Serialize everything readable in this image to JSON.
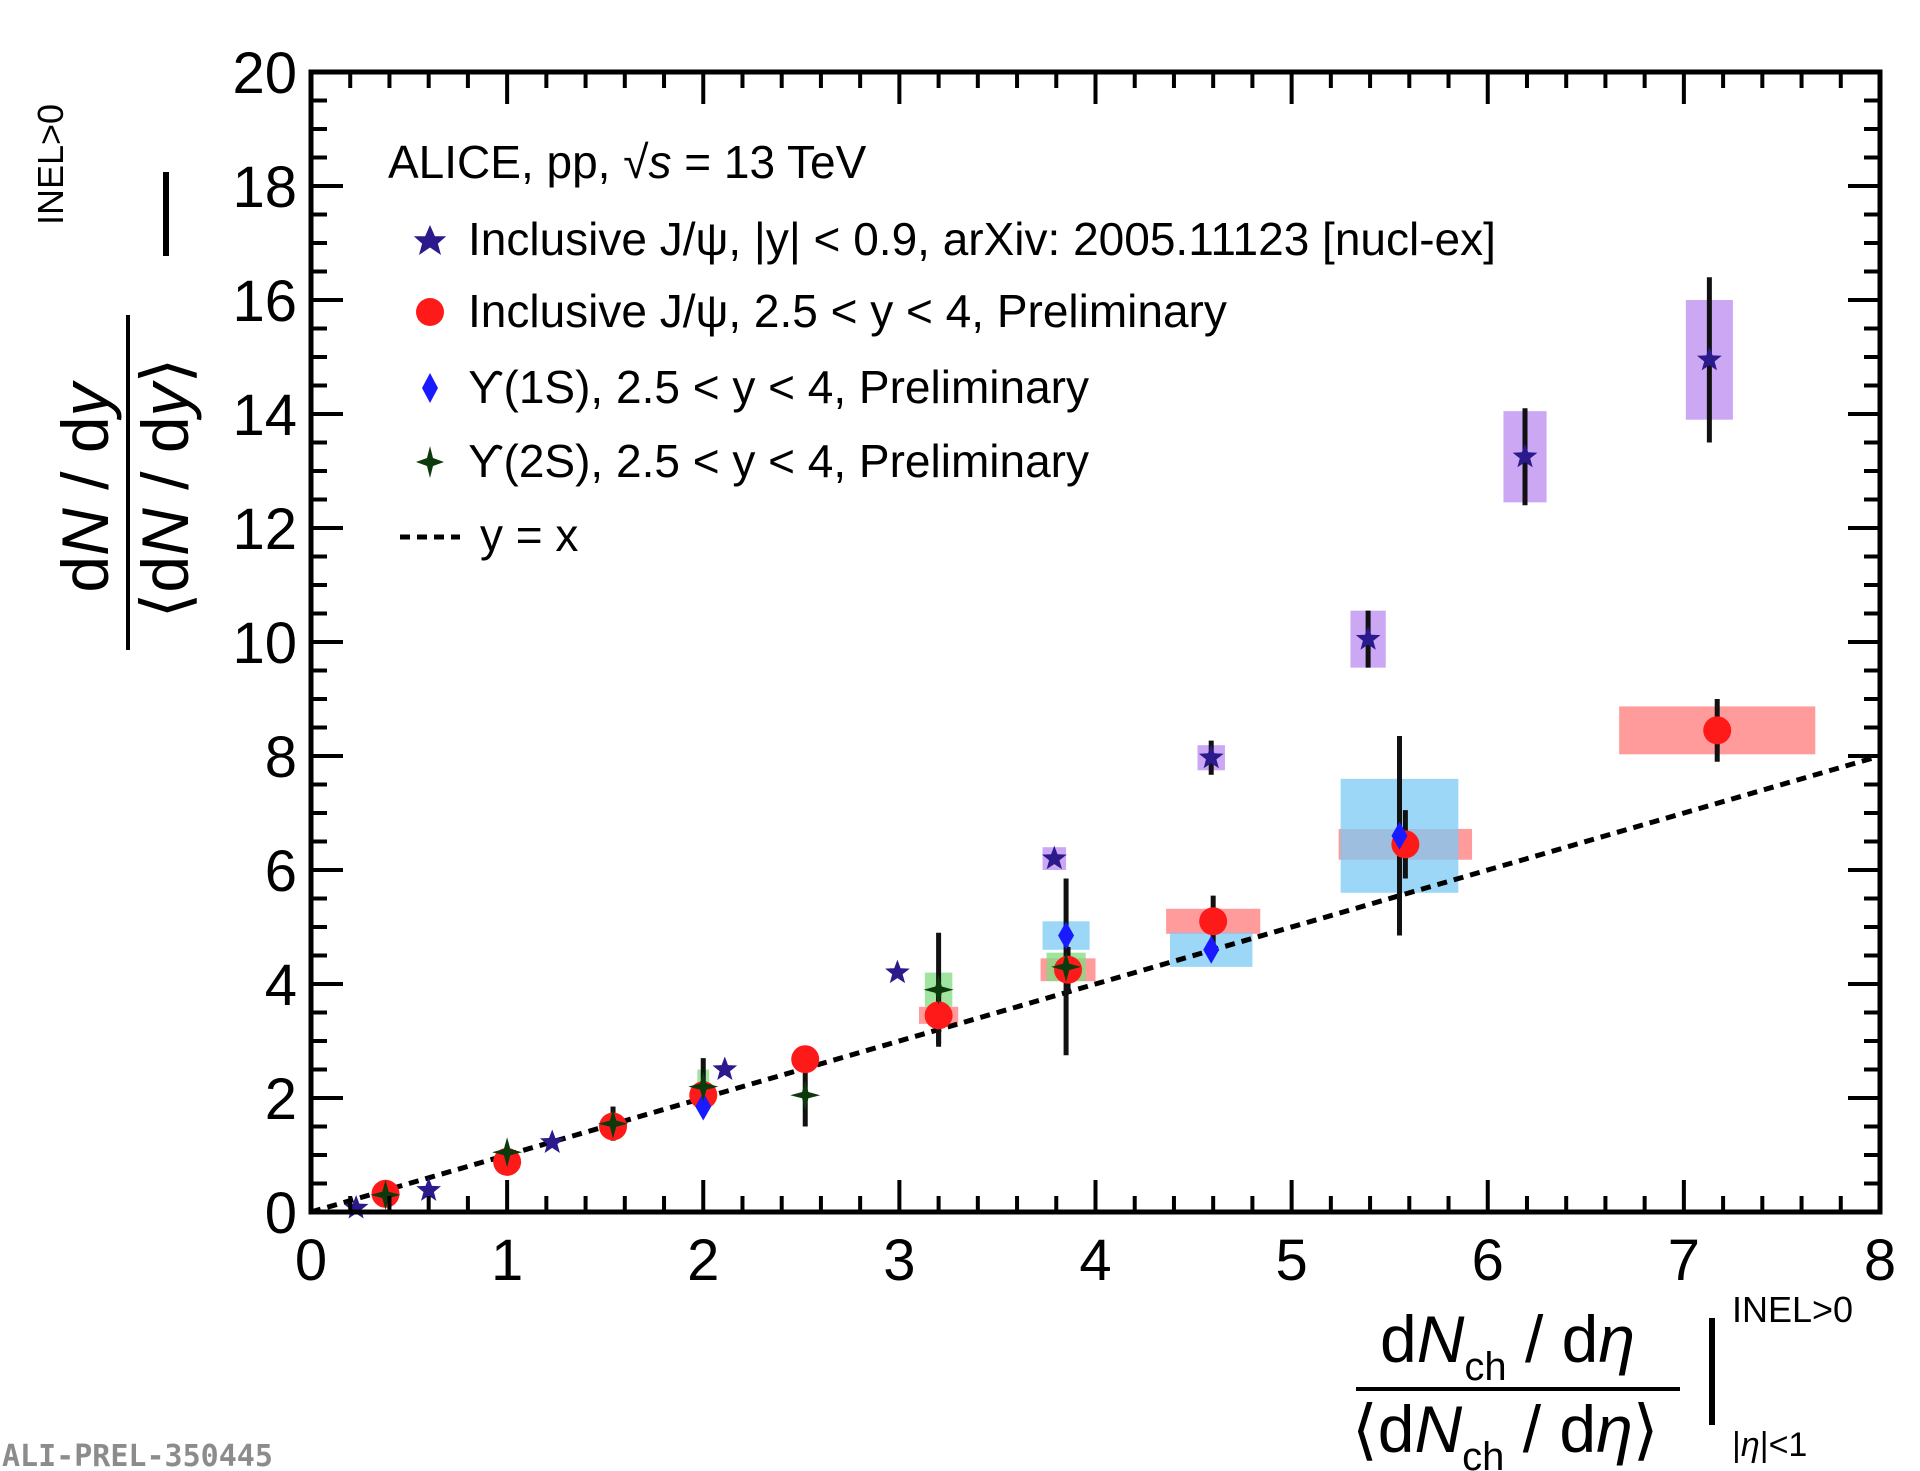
{
  "chart_data": {
    "type": "scatter",
    "title": "ALICE, pp, √s = 13 TeV",
    "x_label": {
      "numerator": "dN_ch / dη",
      "denominator": "⟨dN_ch / dη⟩",
      "superscript": "INEL>0",
      "subscript": "|η|<1"
    },
    "y_label": {
      "numerator": "dN / dy",
      "denominator": "⟨dN / dy⟩",
      "superscript": "INEL>0"
    },
    "xlim": [
      0,
      8
    ],
    "ylim": [
      0,
      20
    ],
    "x_ticks": [
      0,
      1,
      2,
      3,
      4,
      5,
      6,
      7,
      8
    ],
    "y_ticks": [
      0,
      2,
      4,
      6,
      8,
      10,
      12,
      14,
      16,
      18,
      20
    ],
    "x_tick_labels": [
      "0",
      "1",
      "2",
      "3",
      "4",
      "5",
      "6",
      "7",
      "8"
    ],
    "y_tick_labels": [
      "0",
      "2",
      "4",
      "6",
      "8",
      "10",
      "12",
      "14",
      "16",
      "18",
      "20"
    ],
    "grid": false,
    "legend_position": "top-left",
    "series": [
      {
        "name": "Inclusive J/ψ, |y| < 0.9, arXiv: 2005.11123 [nucl-ex]",
        "marker": "star",
        "color": "#2a1a8c",
        "syst_color": "#b98af0",
        "points": [
          {
            "x": 0.23,
            "y": 0.07
          },
          {
            "x": 0.6,
            "y": 0.38
          },
          {
            "x": 1.23,
            "y": 1.22
          },
          {
            "x": 2.11,
            "y": 2.5
          },
          {
            "x": 2.99,
            "y": 4.2
          },
          {
            "x": 3.79,
            "y": 6.2,
            "sys_dx": 0.06,
            "sys_dy": 0.2
          },
          {
            "x": 4.59,
            "y": 7.97,
            "err": 0.3,
            "sys_dx": 0.07,
            "sys_dy": 0.22
          },
          {
            "x": 5.39,
            "y": 10.05,
            "err": 0.5,
            "sys_dx": 0.09,
            "sys_dy": 0.5
          },
          {
            "x": 6.19,
            "y": 13.25,
            "err": 0.85,
            "sys_dx": 0.11,
            "sys_dy": 0.8
          },
          {
            "x": 7.13,
            "y": 14.95,
            "err": 1.45,
            "sys_dx": 0.12,
            "sys_dy": 1.05
          }
        ]
      },
      {
        "name": "Inclusive J/ψ, 2.5 < y < 4, Preliminary",
        "marker": "circle",
        "color": "#ff1a1a",
        "syst_color": "#ff7a7a",
        "points": [
          {
            "x": 0.38,
            "y": 0.32
          },
          {
            "x": 1.0,
            "y": 0.88
          },
          {
            "x": 1.54,
            "y": 1.5
          },
          {
            "x": 2.0,
            "y": 2.05
          },
          {
            "x": 2.52,
            "y": 2.68
          },
          {
            "x": 3.2,
            "y": 3.45,
            "err": 0.5,
            "sys_dx": 0.1,
            "sys_dy": 0.15
          },
          {
            "x": 3.86,
            "y": 4.25,
            "err": 0.4,
            "sys_dx": 0.14,
            "sys_dy": 0.2
          },
          {
            "x": 4.6,
            "y": 5.1,
            "err": 0.45,
            "sys_dx": 0.24,
            "sys_dy": 0.22
          },
          {
            "x": 5.58,
            "y": 6.45,
            "err": 0.6,
            "sys_dx": 0.34,
            "sys_dy": 0.27
          },
          {
            "x": 7.17,
            "y": 8.45,
            "err": 0.55,
            "sys_dx": 0.5,
            "sys_dy": 0.42
          }
        ]
      },
      {
        "name": "ϒ(1S), 2.5 < y < 4, Preliminary",
        "marker": "diamond",
        "color": "#1a1aff",
        "syst_color": "#7ccaf6",
        "points": [
          {
            "x": 2.0,
            "y": 1.85
          },
          {
            "x": 3.85,
            "y": 4.85,
            "sys_dx": 0.12,
            "sys_dy": 0.25
          },
          {
            "x": 4.59,
            "y": 4.6,
            "sys_dx": 0.21,
            "sys_dy": 0.3
          },
          {
            "x": 5.55,
            "y": 6.6,
            "err": 1.75,
            "sys_dx": 0.3,
            "sys_dy": 1.0
          }
        ]
      },
      {
        "name": "ϒ(2S), 2.5 < y < 4, Preliminary",
        "marker": "four-point-star",
        "color": "#0d3a0d",
        "syst_color": "#7fdc7f",
        "points": [
          {
            "x": 0.38,
            "y": 0.3
          },
          {
            "x": 1.0,
            "y": 1.05
          },
          {
            "x": 1.54,
            "y": 1.55,
            "err": 0.3
          },
          {
            "x": 2.0,
            "y": 2.2,
            "err": 0.5,
            "sys_dx": 0.03,
            "sys_dy": 0.3
          },
          {
            "x": 2.52,
            "y": 2.05,
            "err": 0.55
          },
          {
            "x": 3.2,
            "y": 3.9,
            "err": 1.0,
            "sys_dx": 0.07,
            "sys_dy": 0.3
          },
          {
            "x": 3.85,
            "y": 4.3,
            "err": 1.55,
            "sys_dx": 0.1,
            "sys_dy": 0.25
          }
        ]
      }
    ],
    "reference_line": {
      "name": "y = x",
      "style": "dashed",
      "x": [
        0,
        8
      ],
      "y": [
        0,
        8
      ]
    }
  },
  "legend": {
    "title": "ALICE, pp, √s = 13 TeV",
    "entries": [
      "Inclusive J/ψ, |y| < 0.9, arXiv: 2005.11123 [nucl-ex]",
      "Inclusive J/ψ, 2.5 < y < 4, Preliminary",
      "ϒ(1S), 2.5 < y < 4, Preliminary",
      "ϒ(2S), 2.5 < y < 4, Preliminary",
      "y = x"
    ]
  },
  "watermark": "ALI-PREL-350445"
}
